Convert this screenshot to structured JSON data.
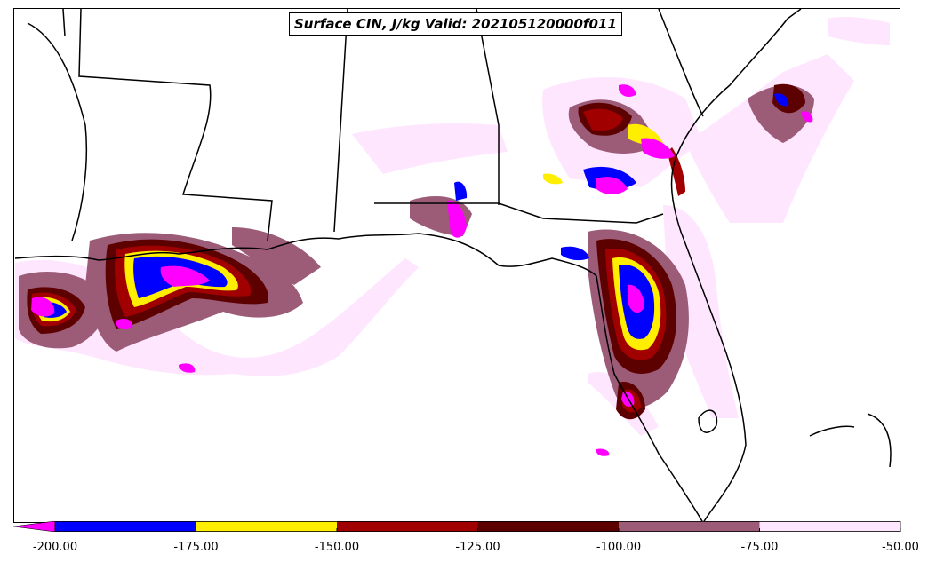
{
  "title": "Surface CIN, J/kg Valid: 202105120000f011",
  "colorbar": {
    "ticks": [
      "-200.00",
      "-175.00",
      "-150.00",
      "-125.00",
      "-100.00",
      "-75.00",
      "-50.00"
    ],
    "bins": [
      {
        "from": -225,
        "to": -200,
        "color": "#ff00ff"
      },
      {
        "from": -200,
        "to": -175,
        "color": "#0000ff"
      },
      {
        "from": -175,
        "to": -150,
        "color": "#ffee00"
      },
      {
        "from": -150,
        "to": -125,
        "color": "#a00000"
      },
      {
        "from": -125,
        "to": -100,
        "color": "#5c0000"
      },
      {
        "from": -100,
        "to": -75,
        "color": "#9c5c78"
      },
      {
        "from": -75,
        "to": -50,
        "color": "#ffe6ff"
      }
    ]
  }
}
